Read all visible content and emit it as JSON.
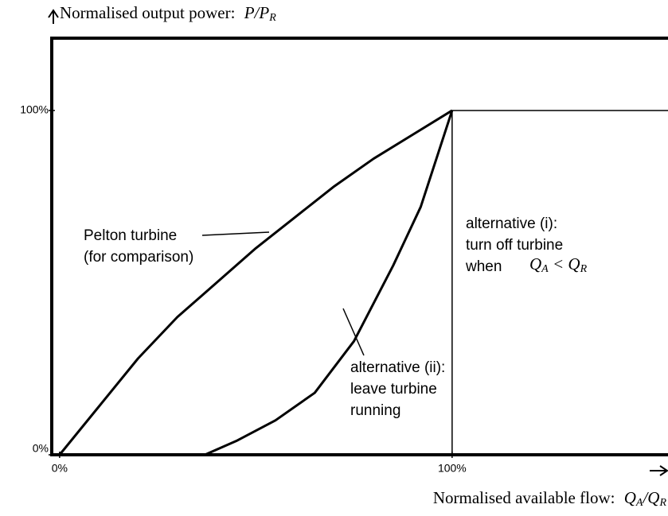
{
  "chart_data": {
    "type": "line",
    "y_label": {
      "text": "Normalised output power:",
      "symbol": "P/P",
      "subscript": "R"
    },
    "x_label": {
      "text": "Normalised available flow:",
      "symbol": "Q",
      "subscript": "A",
      "symbol2": "/Q",
      "subscript2": "R"
    },
    "xlim": [
      -2,
      155
    ],
    "ylim": [
      0,
      121
    ],
    "xticks": [
      {
        "value": 0,
        "label": "0%"
      },
      {
        "value": 100,
        "label": "100%"
      }
    ],
    "yticks": [
      {
        "value": 0,
        "label": "0%"
      },
      {
        "value": 100,
        "label": "100%"
      }
    ],
    "series": [
      {
        "color": "#000000",
        "x": [
          0,
          10,
          20,
          30,
          40,
          50,
          60,
          70,
          80,
          90,
          100
        ],
        "values": [
          0,
          14,
          28,
          40,
          50,
          60,
          69,
          78,
          86,
          93,
          100
        ]
      },
      {
        "color": "#000000",
        "x": [
          37,
          45,
          55,
          65,
          75,
          85,
          92,
          100
        ],
        "values": [
          0,
          4,
          10,
          18,
          33,
          55,
          72,
          100
        ]
      },
      {
        "color": "#000000",
        "x": [
          100,
          100,
          155
        ],
        "values": [
          0,
          100,
          100
        ]
      }
    ],
    "annotations": {
      "pelton": [
        "Pelton turbine",
        "(for comparison)"
      ],
      "alt_ii": [
        "alternative (ii):",
        "leave turbine",
        "running"
      ],
      "alt_i": [
        "alternative (i):",
        "turn off turbine",
        "when"
      ],
      "condition": {
        "symbol": "Q",
        "subscript": "A",
        "operator": " < Q",
        "subscript2": "R"
      }
    }
  }
}
